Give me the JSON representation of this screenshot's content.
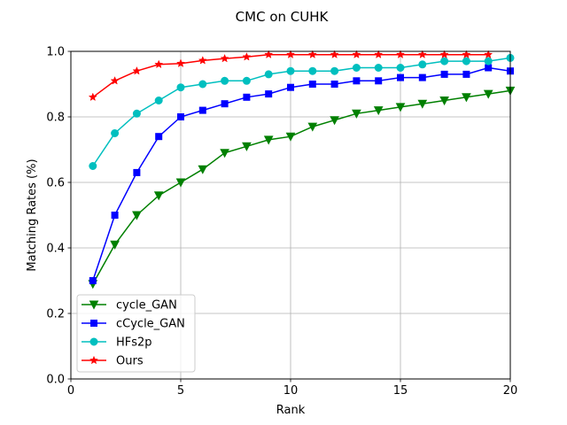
{
  "chart_data": {
    "type": "line",
    "title": "CMC on CUHK",
    "xlabel": "Rank",
    "ylabel": "Matching Rates (%)",
    "xlim": [
      0,
      20
    ],
    "ylim": [
      0,
      1.0
    ],
    "xticks": [
      0,
      5,
      10,
      15,
      20
    ],
    "xtick_labels": [
      "0",
      "5",
      "10",
      "15",
      "20"
    ],
    "yticks": [
      0,
      0.2,
      0.4,
      0.6,
      0.8,
      1.0
    ],
    "ytick_labels": [
      "0.0",
      "0.2",
      "0.4",
      "0.6",
      "0.8",
      "1.0"
    ],
    "grid": true,
    "legend_position": "lower-left",
    "x": [
      1,
      2,
      3,
      4,
      5,
      6,
      7,
      8,
      9,
      10,
      11,
      12,
      13,
      14,
      15,
      16,
      17,
      18,
      19,
      20
    ],
    "series": [
      {
        "name": "cycle_GAN",
        "color": "#008000",
        "marker": "triangle-down",
        "values": [
          0.29,
          0.41,
          0.5,
          0.56,
          0.6,
          0.64,
          0.69,
          0.71,
          0.73,
          0.74,
          0.77,
          0.79,
          0.81,
          0.82,
          0.83,
          0.84,
          0.85,
          0.86,
          0.87,
          0.88
        ]
      },
      {
        "name": "cCycle_GAN",
        "color": "#0000ff",
        "marker": "square",
        "values": [
          0.3,
          0.5,
          0.63,
          0.74,
          0.8,
          0.82,
          0.84,
          0.86,
          0.87,
          0.89,
          0.9,
          0.9,
          0.91,
          0.91,
          0.92,
          0.92,
          0.93,
          0.93,
          0.95,
          0.94
        ]
      },
      {
        "name": "HFs2p",
        "color": "#00bfbf",
        "marker": "circle",
        "values": [
          0.65,
          0.75,
          0.81,
          0.85,
          0.89,
          0.9,
          0.91,
          0.91,
          0.93,
          0.94,
          0.94,
          0.94,
          0.95,
          0.95,
          0.95,
          0.96,
          0.97,
          0.97,
          0.97,
          0.98
        ]
      },
      {
        "name": "Ours",
        "color": "#ff0000",
        "marker": "star",
        "values": [
          0.86,
          0.91,
          0.94,
          0.96,
          0.963,
          0.972,
          0.978,
          0.983,
          0.99,
          0.99,
          0.99,
          0.99,
          0.99,
          0.99,
          0.99,
          0.99,
          0.99,
          0.99,
          0.99,
          null
        ]
      }
    ]
  }
}
